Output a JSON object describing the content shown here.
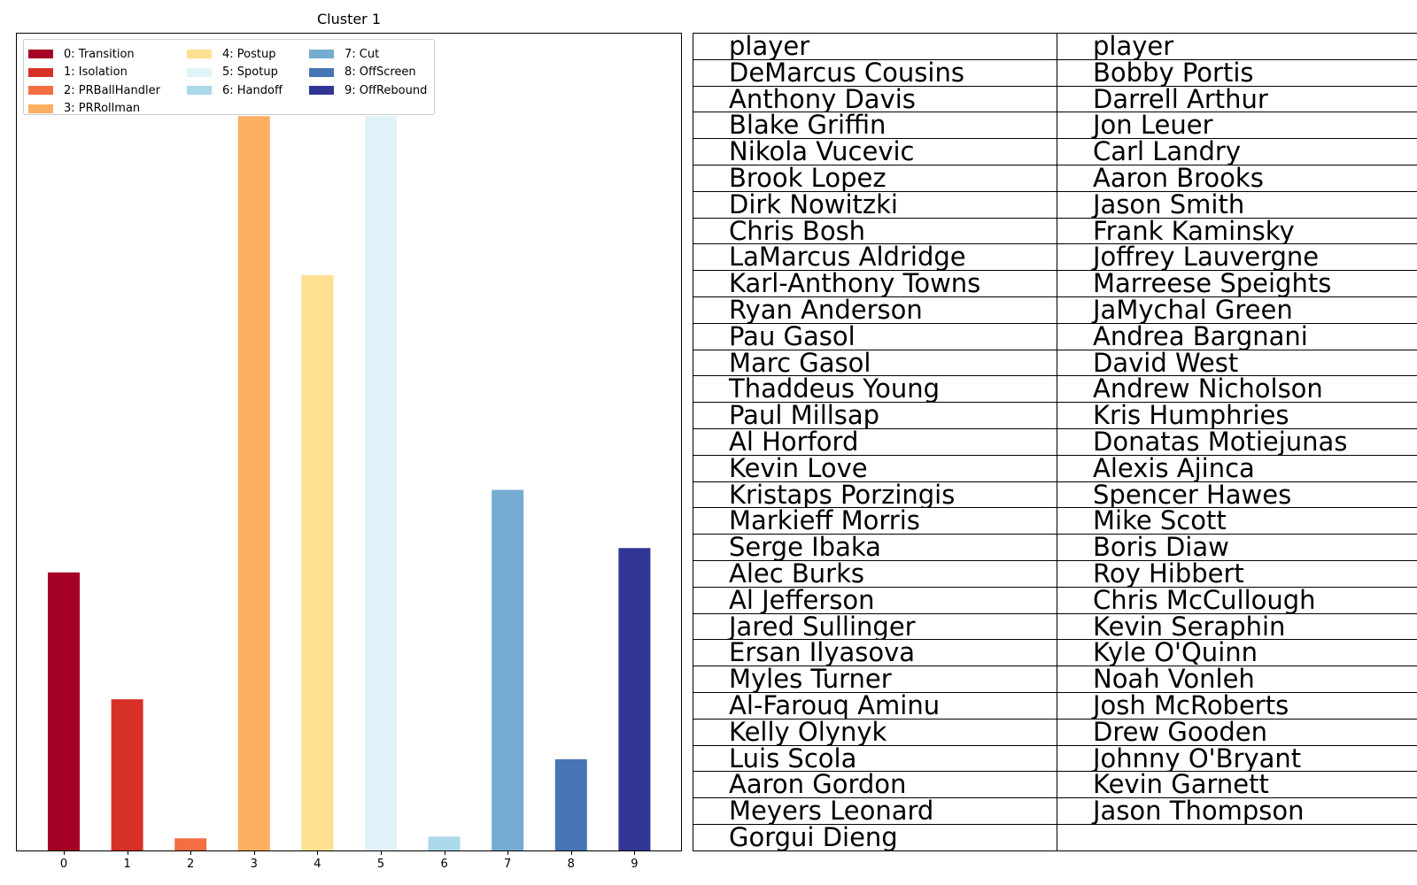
{
  "chart_data": {
    "type": "bar",
    "title": "Cluster 1",
    "xlabel": "",
    "ylabel": "",
    "categories": [
      "0",
      "1",
      "2",
      "3",
      "4",
      "5",
      "6",
      "7",
      "8",
      "9"
    ],
    "values": [
      0.32,
      0.174,
      0.014,
      0.845,
      0.662,
      0.845,
      0.016,
      0.415,
      0.105,
      0.348
    ],
    "ylim": [
      0,
      0.94
    ],
    "colors": [
      "#a50026",
      "#d73027",
      "#f46d43",
      "#fdae61",
      "#fee090",
      "#e0f3f8",
      "#abd9e9",
      "#74add1",
      "#4575b4",
      "#313695"
    ],
    "legend": [
      "0: Transition",
      "1: Isolation",
      "2: PRBallHandler",
      "3: PRRollman",
      "4: Postup",
      "5: Spotup",
      "6: Handoff",
      "7: Cut",
      "8: OffScreen",
      "9: OffRebound"
    ],
    "legend_placement": "top-left",
    "grid": false
  },
  "table": {
    "columns": [
      {
        "header": "player",
        "rows": [
          "DeMarcus Cousins",
          "Anthony Davis",
          "Blake Griffin",
          "Nikola Vucevic",
          "Brook Lopez",
          "Dirk Nowitzki",
          "Chris Bosh",
          "LaMarcus Aldridge",
          "Karl-Anthony Towns",
          "Ryan Anderson",
          "Pau Gasol",
          "Marc Gasol",
          "Thaddeus Young",
          "Paul Millsap",
          "Al Horford",
          "Kevin Love",
          "Kristaps Porzingis",
          "Markieff Morris",
          "Serge Ibaka",
          "Alec Burks",
          "Al Jefferson",
          "Jared Sullinger",
          "Ersan Ilyasova",
          "Myles Turner",
          "Al-Farouq Aminu",
          "Kelly Olynyk",
          "Luis Scola",
          "Aaron Gordon",
          "Meyers Leonard",
          "Gorgui Dieng"
        ]
      },
      {
        "header": "player",
        "rows": [
          "Bobby Portis",
          "Darrell Arthur",
          "Jon Leuer",
          "Carl Landry",
          "Aaron Brooks",
          "Jason Smith",
          "Frank Kaminsky",
          "Joffrey Lauvergne",
          "Marreese Speights",
          "JaMychal Green",
          "Andrea Bargnani",
          "David West",
          "Andrew Nicholson",
          "Kris Humphries",
          "Donatas Motiejunas",
          "Alexis Ajinca",
          "Spencer Hawes",
          "Mike Scott",
          "Boris Diaw",
          "Roy Hibbert",
          "Chris McCullough",
          "Kevin Seraphin",
          "Kyle O'Quinn",
          "Noah Vonleh",
          "Josh McRoberts",
          "Drew Gooden",
          "Johnny O'Bryant",
          "Kevin Garnett",
          "Jason Thompson",
          ""
        ]
      }
    ]
  }
}
